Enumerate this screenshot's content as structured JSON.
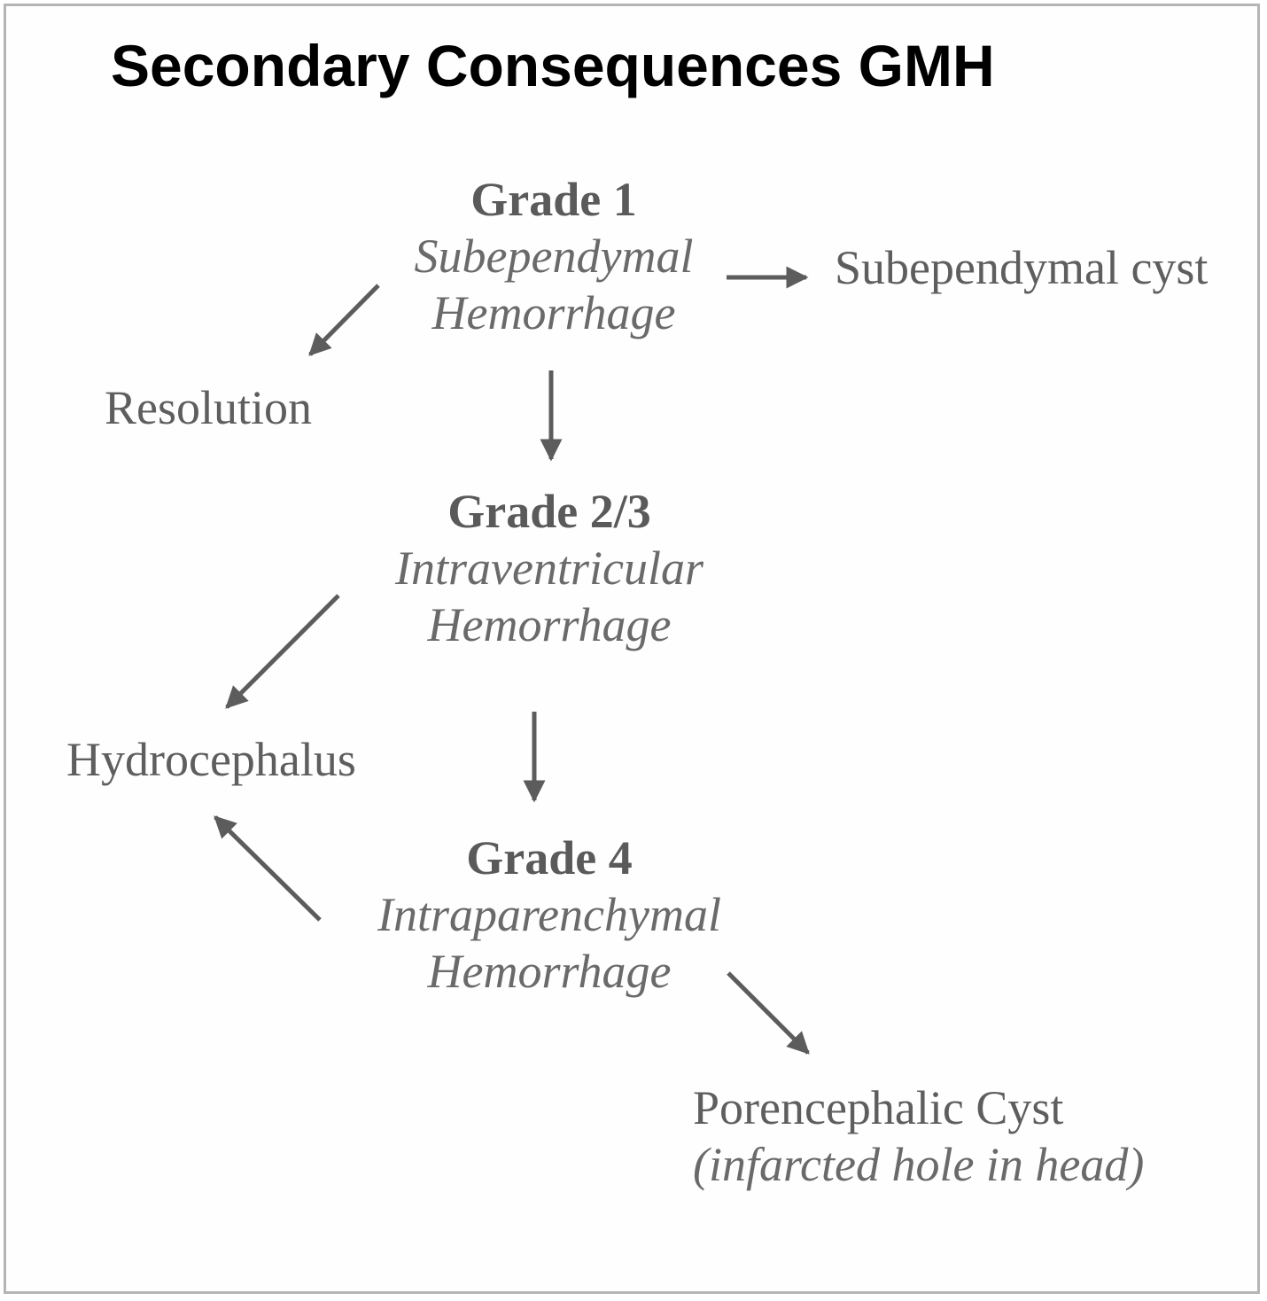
{
  "title": "Secondary Consequences GMH",
  "colors": {
    "text": "#5e5e5e",
    "arrow": "#5c5c5c",
    "title": "#000000",
    "border": "#b5b5b5"
  },
  "nodes": {
    "grade1": {
      "grade": "Grade 1",
      "line1": "Subependymal",
      "line2": "Hemorrhage"
    },
    "grade23": {
      "grade": "Grade 2/3",
      "line1": "Intraventricular",
      "line2": "Hemorrhage"
    },
    "grade4": {
      "grade": "Grade 4",
      "line1": "Intraparenchymal",
      "line2": "Hemorrhage"
    },
    "resolution": {
      "label": "Resolution"
    },
    "subependymal_cyst": {
      "label": "Subependymal cyst"
    },
    "hydrocephalus": {
      "label": "Hydrocephalus"
    },
    "porencephalic_cyst": {
      "label": "Porencephalic Cyst",
      "note": "(infarcted hole in head)"
    }
  },
  "edges": [
    {
      "from": "grade1",
      "to": "resolution"
    },
    {
      "from": "grade1",
      "to": "subependymal_cyst"
    },
    {
      "from": "grade1",
      "to": "grade23"
    },
    {
      "from": "grade23",
      "to": "hydrocephalus"
    },
    {
      "from": "grade23",
      "to": "grade4"
    },
    {
      "from": "grade4",
      "to": "hydrocephalus"
    },
    {
      "from": "grade4",
      "to": "porencephalic_cyst"
    }
  ]
}
